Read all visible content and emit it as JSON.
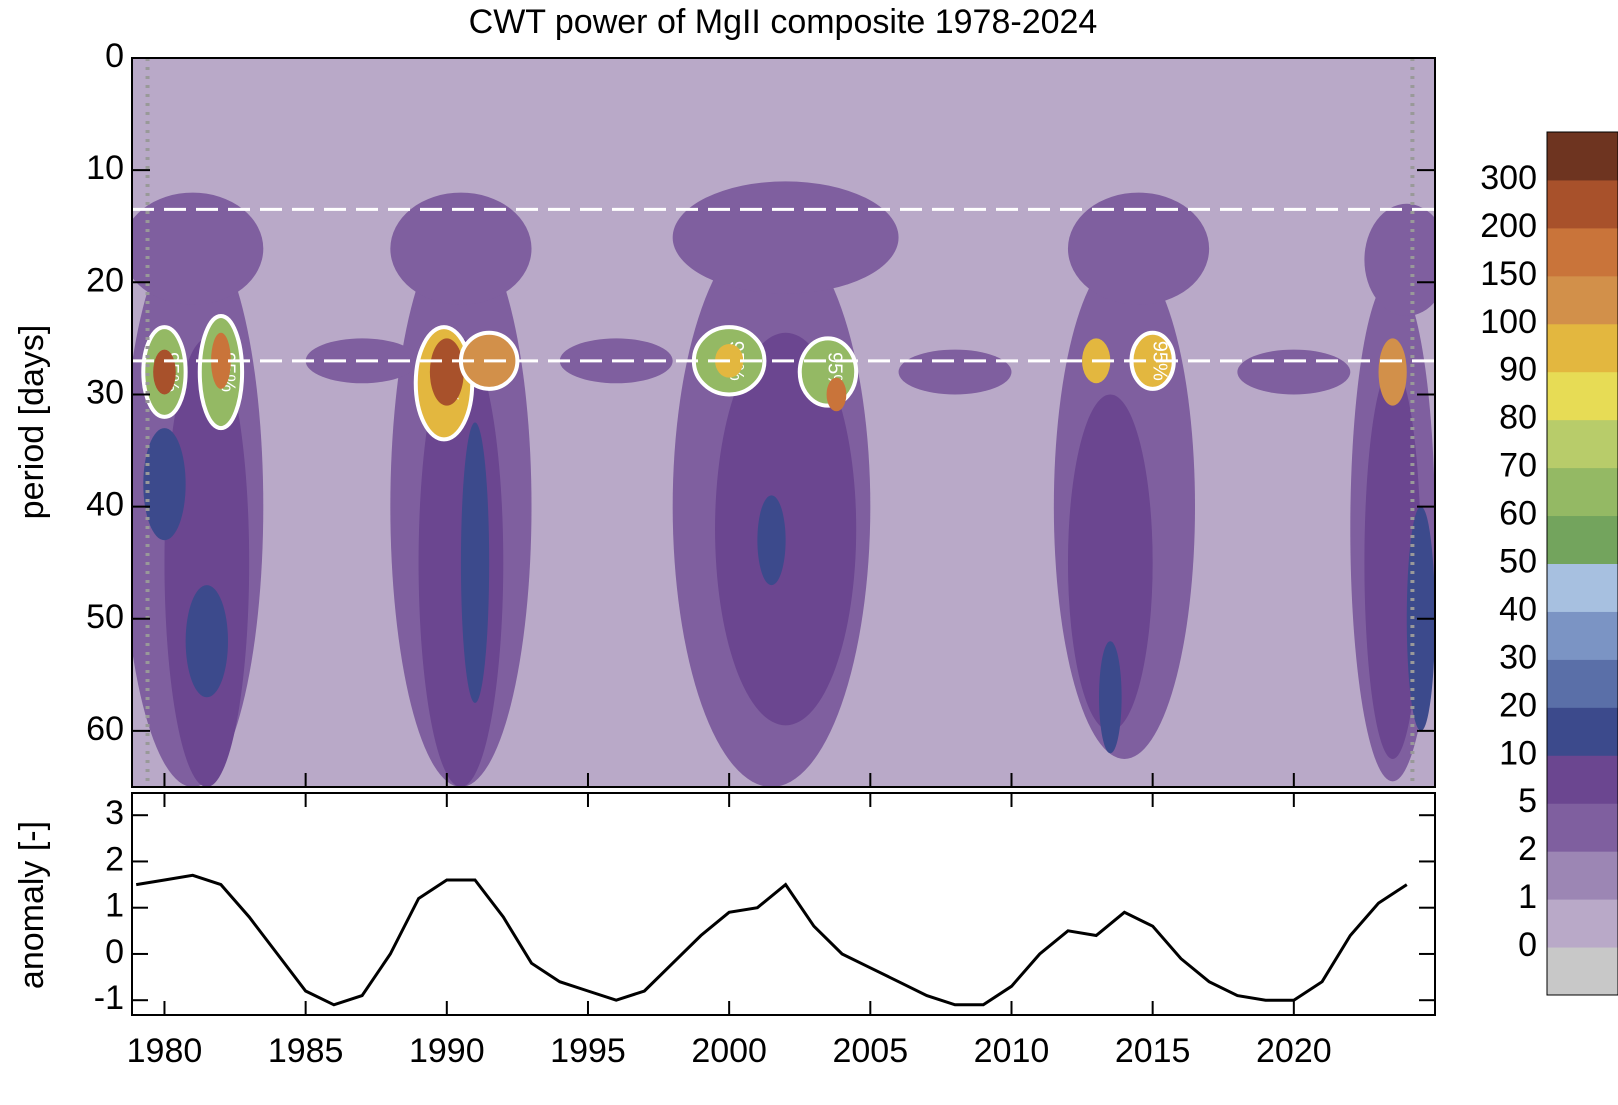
{
  "chart_data": {
    "type": "wavelet",
    "title": "CWT power of MgII composite 1978-2024",
    "ylabel": "period  [days]",
    "ylim": [
      0,
      65
    ],
    "yticks": [
      0,
      10,
      20,
      30,
      40,
      50,
      60
    ],
    "xlim": [
      1978.85,
      2025.0
    ],
    "xticks": [
      1980,
      1985,
      1990,
      1995,
      2000,
      2005,
      2010,
      2015,
      2020
    ],
    "reference_periods": [
      13.5,
      27
    ],
    "coi_years": [
      1979.4,
      2024.2
    ],
    "background_power": 0.5,
    "significance_label": "95%",
    "significance_power": 50,
    "regions": [
      {
        "year": 1981,
        "period": 40,
        "year_span": 5,
        "period_span": 50,
        "power": 3
      },
      {
        "year": 1990.5,
        "period": 40,
        "year_span": 5,
        "period_span": 50,
        "power": 3
      },
      {
        "year": 2001.5,
        "period": 40,
        "year_span": 7,
        "period_span": 50,
        "power": 3
      },
      {
        "year": 2014,
        "period": 40,
        "year_span": 5,
        "period_span": 45,
        "power": 3
      },
      {
        "year": 2023.5,
        "period": 42,
        "year_span": 3,
        "period_span": 45,
        "power": 3
      },
      {
        "year": 1981,
        "period": 17,
        "year_span": 5,
        "period_span": 10,
        "power": 3
      },
      {
        "year": 1990.5,
        "period": 17,
        "year_span": 5,
        "period_span": 10,
        "power": 3
      },
      {
        "year": 2002,
        "period": 16,
        "year_span": 8,
        "period_span": 10,
        "power": 3
      },
      {
        "year": 2014.5,
        "period": 17,
        "year_span": 5,
        "period_span": 10,
        "power": 3
      },
      {
        "year": 2024,
        "period": 18,
        "year_span": 3,
        "period_span": 10,
        "power": 3
      },
      {
        "year": 1987,
        "period": 27,
        "year_span": 4,
        "period_span": 4,
        "power": 3
      },
      {
        "year": 1996,
        "period": 27,
        "year_span": 4,
        "period_span": 4,
        "power": 3
      },
      {
        "year": 2008,
        "period": 28,
        "year_span": 4,
        "period_span": 4,
        "power": 3
      },
      {
        "year": 2020,
        "period": 28,
        "year_span": 4,
        "period_span": 4,
        "power": 3
      },
      {
        "year": 1981.5,
        "period": 45,
        "year_span": 3,
        "period_span": 40,
        "power": 7
      },
      {
        "year": 1990.5,
        "period": 45,
        "year_span": 3,
        "period_span": 40,
        "power": 7
      },
      {
        "year": 2002,
        "period": 42,
        "year_span": 5,
        "period_span": 35,
        "power": 7
      },
      {
        "year": 2013.5,
        "period": 45,
        "year_span": 3,
        "period_span": 30,
        "power": 7
      },
      {
        "year": 2023.5,
        "period": 45,
        "year_span": 2,
        "period_span": 35,
        "power": 7
      },
      {
        "year": 1980,
        "period": 38,
        "year_span": 1.5,
        "period_span": 10,
        "power": 15
      },
      {
        "year": 1981.5,
        "period": 52,
        "year_span": 1.5,
        "period_span": 10,
        "power": 15
      },
      {
        "year": 1991,
        "period": 45,
        "year_span": 1,
        "period_span": 25,
        "power": 15
      },
      {
        "year": 2001.5,
        "period": 43,
        "year_span": 1,
        "period_span": 8,
        "power": 15
      },
      {
        "year": 2013.5,
        "period": 57,
        "year_span": 0.8,
        "period_span": 10,
        "power": 15
      },
      {
        "year": 2024.5,
        "period": 50,
        "year_span": 1,
        "period_span": 20,
        "power": 15
      },
      {
        "year": 1980,
        "period": 28,
        "year_span": 1.5,
        "period_span": 8,
        "power": 60
      },
      {
        "year": 1980,
        "period": 28,
        "year_span": 0.8,
        "period_span": 4,
        "power": 200
      },
      {
        "year": 1982,
        "period": 28,
        "year_span": 1.5,
        "period_span": 10,
        "power": 60
      },
      {
        "year": 1982,
        "period": 27,
        "year_span": 0.7,
        "period_span": 5,
        "power": 150
      },
      {
        "year": 1989.9,
        "period": 29,
        "year_span": 2,
        "period_span": 10,
        "power": 90
      },
      {
        "year": 1990,
        "period": 28,
        "year_span": 1.2,
        "period_span": 6,
        "power": 250
      },
      {
        "year": 1991.5,
        "period": 27,
        "year_span": 2,
        "period_span": 5,
        "power": 100
      },
      {
        "year": 2000,
        "period": 27,
        "year_span": 2.5,
        "period_span": 6,
        "power": 60
      },
      {
        "year": 2000,
        "period": 27,
        "year_span": 1,
        "period_span": 3,
        "power": 90
      },
      {
        "year": 2003.5,
        "period": 28,
        "year_span": 2,
        "period_span": 6,
        "power": 60
      },
      {
        "year": 2003.8,
        "period": 30,
        "year_span": 0.7,
        "period_span": 3,
        "power": 150
      },
      {
        "year": 2013,
        "period": 27,
        "year_span": 1,
        "period_span": 4,
        "power": 90
      },
      {
        "year": 2015,
        "period": 27,
        "year_span": 1.5,
        "period_span": 5,
        "power": 90
      },
      {
        "year": 2023.5,
        "period": 28,
        "year_span": 1,
        "period_span": 6,
        "power": 100
      }
    ],
    "colorbar": {
      "levels": [
        0,
        1,
        2,
        5,
        10,
        20,
        30,
        40,
        50,
        60,
        70,
        80,
        90,
        100,
        150,
        200,
        300
      ],
      "colors": [
        "#c8c8c8",
        "#b9a9c8",
        "#9c86b4",
        "#7f5f9f",
        "#6b4690",
        "#3c4a8c",
        "#5a6fa8",
        "#7b94c4",
        "#a7c0e0",
        "#73a45d",
        "#94b964",
        "#b8cc6a",
        "#e7dc55",
        "#e3b73f",
        "#d2904a",
        "#c9743a",
        "#a8512b",
        "#6e3420"
      ]
    },
    "anomaly": {
      "ylabel": "anomaly [-]",
      "ylim": [
        -1.32,
        3.48
      ],
      "yticks": [
        -1,
        0,
        1,
        2,
        3
      ],
      "color": "#000000",
      "x": [
        1979,
        1980,
        1981,
        1982,
        1983,
        1984,
        1985,
        1986,
        1987,
        1988,
        1989,
        1990,
        1991,
        1992,
        1993,
        1994,
        1995,
        1996,
        1997,
        1998,
        1999,
        2000,
        2001,
        2002,
        2003,
        2004,
        2005,
        2006,
        2007,
        2008,
        2009,
        2010,
        2011,
        2012,
        2013,
        2014,
        2015,
        2016,
        2017,
        2018,
        2019,
        2020,
        2021,
        2022,
        2023,
        2024
      ],
      "values": [
        1.5,
        1.6,
        1.7,
        1.5,
        0.8,
        0,
        -0.8,
        -1.1,
        -0.9,
        0,
        1.2,
        1.6,
        1.6,
        0.8,
        -0.2,
        -0.6,
        -0.8,
        -1.0,
        -0.8,
        -0.2,
        0.4,
        0.9,
        1.0,
        1.5,
        0.6,
        0,
        -0.3,
        -0.6,
        -0.9,
        -1.1,
        -1.1,
        -0.7,
        0,
        0.5,
        0.4,
        0.9,
        0.6,
        -0.1,
        -0.6,
        -0.9,
        -1.0,
        -1.0,
        -0.6,
        0.4,
        1.1,
        1.5
      ]
    }
  }
}
